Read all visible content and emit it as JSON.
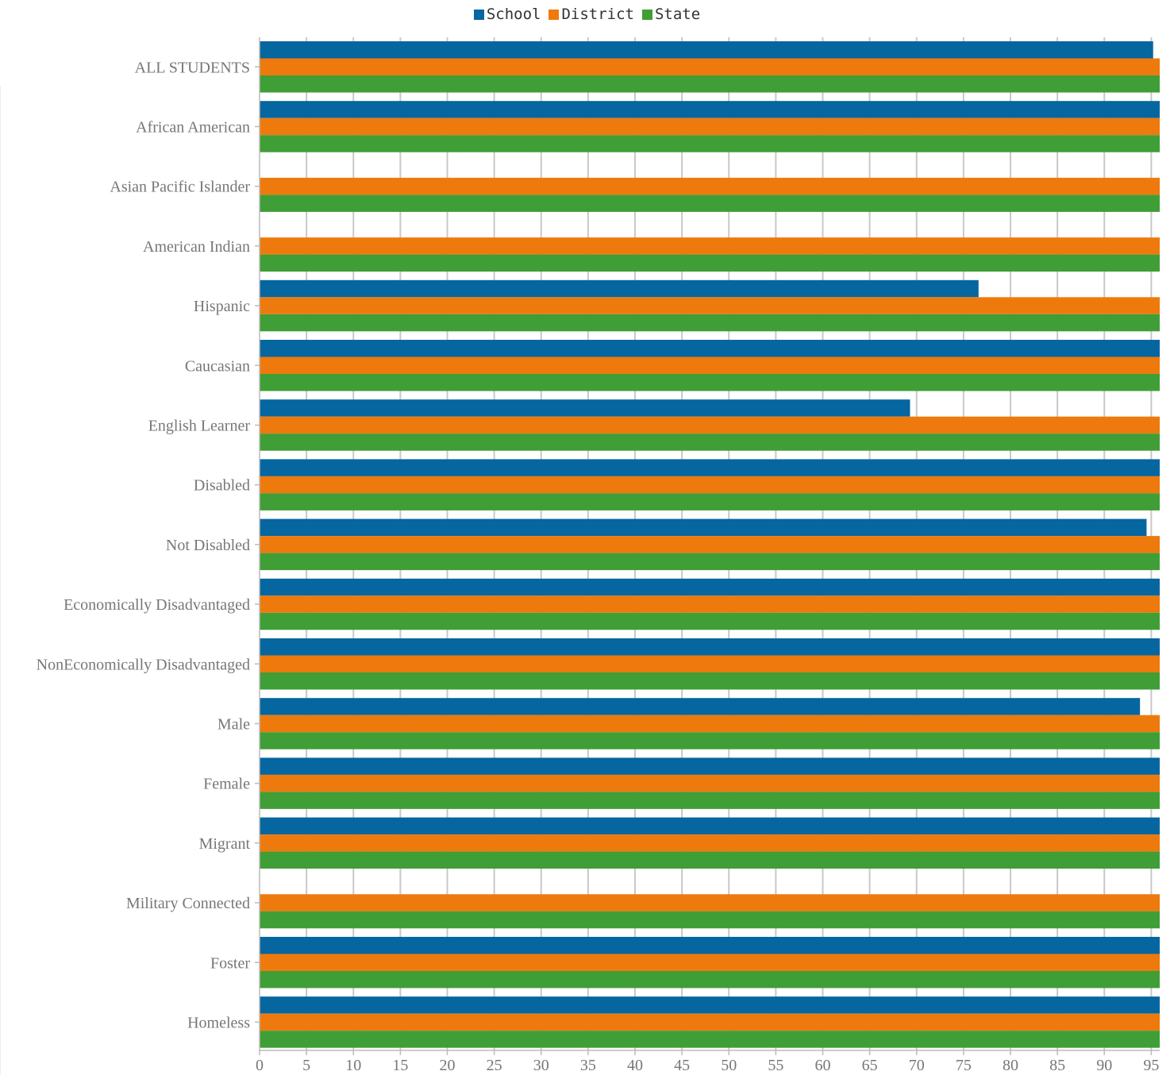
{
  "chart_data": {
    "type": "bar",
    "orientation": "horizontal",
    "categories": [
      "ALL STUDENTS",
      "African American",
      "Asian Pacific Islander",
      "American Indian",
      "Hispanic",
      "Caucasian",
      "English Learner",
      "Disabled",
      "Not Disabled",
      "Economically Disadvantaged",
      "NonEconomically Disadvantaged",
      "Male",
      "Female",
      "Migrant",
      "Military Connected",
      "Foster",
      "Homeless"
    ],
    "series": [
      {
        "name": "School",
        "color": "#0566a0",
        "values": [
          95.2,
          100,
          null,
          null,
          76.6,
          100,
          69.3,
          100,
          94.5,
          100,
          100,
          93.8,
          100,
          100,
          null,
          100,
          100
        ]
      },
      {
        "name": "District",
        "color": "#ee7a0d",
        "values": [
          100,
          100,
          100,
          100,
          100,
          100,
          100,
          100,
          100,
          100,
          100,
          100,
          100,
          100,
          100,
          100,
          100
        ]
      },
      {
        "name": "State",
        "color": "#3f9e36",
        "values": [
          100,
          100,
          100,
          100,
          100,
          100,
          100,
          100,
          100,
          100,
          100,
          100,
          100,
          100,
          100,
          100,
          100
        ]
      }
    ],
    "xlim": [
      0,
      95.9
    ],
    "xticks": [
      0,
      5,
      10,
      15,
      20,
      25,
      30,
      35,
      40,
      45,
      50,
      55,
      60,
      65,
      70,
      75,
      80,
      85,
      90,
      95
    ],
    "xlabel": "",
    "ylabel": "",
    "title": "",
    "grid": true,
    "legend_position": "top-center"
  }
}
